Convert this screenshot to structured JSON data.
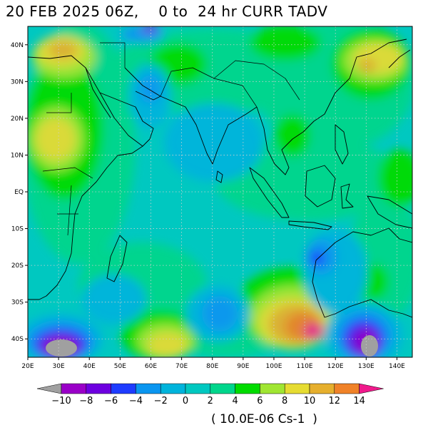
{
  "title": "20 FEB 2025 06Z,    0 to  24 hr CURR TADV",
  "map": {
    "lon_range": [
      20,
      145
    ],
    "lat_range": [
      -45,
      45
    ],
    "lon_ticks": [
      {
        "value": 20,
        "label": "20E"
      },
      {
        "value": 30,
        "label": "30E"
      },
      {
        "value": 40,
        "label": "40E"
      },
      {
        "value": 50,
        "label": "50E"
      },
      {
        "value": 60,
        "label": "60E"
      },
      {
        "value": 70,
        "label": "70E"
      },
      {
        "value": 80,
        "label": "80E"
      },
      {
        "value": 90,
        "label": "90E"
      },
      {
        "value": 100,
        "label": "100E"
      },
      {
        "value": 110,
        "label": "110E"
      },
      {
        "value": 120,
        "label": "120E"
      },
      {
        "value": 130,
        "label": "130E"
      },
      {
        "value": 140,
        "label": "140E"
      }
    ],
    "lat_ticks": [
      {
        "value": 40,
        "label": "40N"
      },
      {
        "value": 30,
        "label": "30N"
      },
      {
        "value": 20,
        "label": "20N"
      },
      {
        "value": 10,
        "label": "10N"
      },
      {
        "value": 0,
        "label": "EQ"
      },
      {
        "value": -10,
        "label": "10S"
      },
      {
        "value": -20,
        "label": "20S"
      },
      {
        "value": -30,
        "label": "30S"
      },
      {
        "value": -40,
        "label": "40S"
      }
    ]
  },
  "colorbar": {
    "labels": [
      "−10",
      "−8",
      "−6",
      "−4",
      "−2",
      "0",
      "2",
      "4",
      "6",
      "8",
      "10",
      "12",
      "14"
    ],
    "colors": {
      "lt_minus10": "#a0a0a0",
      "m10": "#9a00c8",
      "m8": "#6e00e0",
      "m6": "#1e3cff",
      "m4": "#0a96f0",
      "m2": "#00b4dc",
      "p0": "#00c8c0",
      "p2": "#00d68c",
      "p4": "#00dc00",
      "p6": "#a0e632",
      "p8": "#e6dc32",
      "p10": "#e6af2d",
      "p12": "#f08228",
      "gt14": "#f01a8c"
    },
    "unit": "( 10.0E-06 Cs-1  )"
  }
}
